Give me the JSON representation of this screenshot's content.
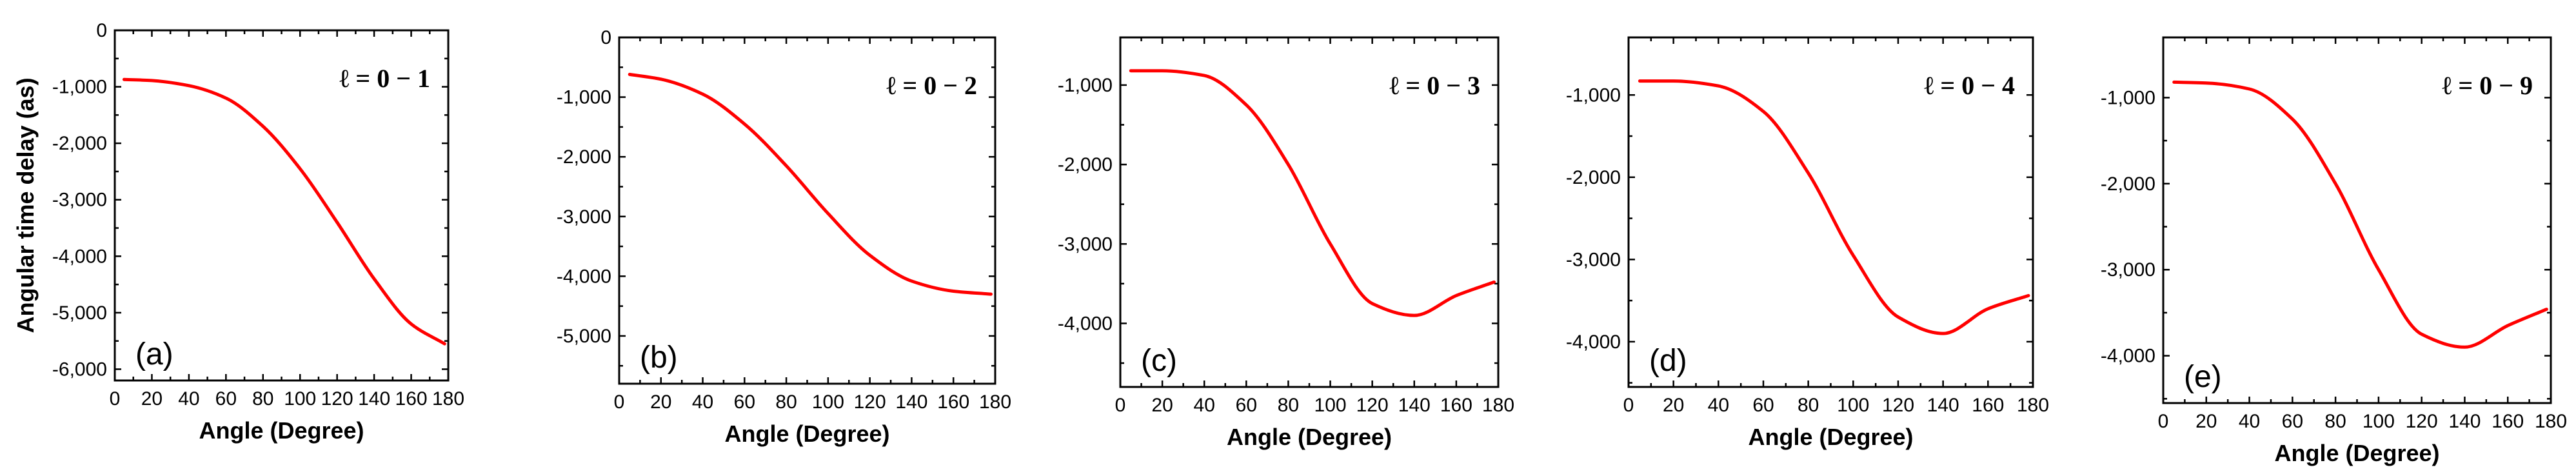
{
  "chart_data": [
    {
      "type": "line",
      "panel": "(a)",
      "label": "ℓ = 0 − 1",
      "xlabel": "Angle (Degree)",
      "ylabel": "Angular time delay (as)",
      "xlim": [
        0,
        180
      ],
      "ylim": [
        -6200,
        0
      ],
      "x_ticks": [
        0,
        20,
        40,
        60,
        80,
        100,
        120,
        140,
        160,
        180
      ],
      "y_ticks": [
        0,
        -1000,
        -2000,
        -3000,
        -4000,
        -5000,
        -6000
      ],
      "y_tick_labels": [
        "0",
        "-1,000",
        "-2,000",
        "-3,000",
        "-4,000",
        "-5,000",
        "-6,000"
      ],
      "grid": false,
      "color": "#ff0000",
      "series": [
        {
          "x": [
            5,
            20,
            40,
            60,
            80,
            100,
            120,
            140,
            160,
            178
          ],
          "y": [
            -870,
            -890,
            -980,
            -1200,
            -1700,
            -2450,
            -3400,
            -4400,
            -5200,
            -5550
          ]
        }
      ]
    },
    {
      "type": "line",
      "panel": "(b)",
      "label": "ℓ = 0 − 2",
      "xlabel": "Angle (Degree)",
      "ylabel": "",
      "xlim": [
        0,
        180
      ],
      "ylim": [
        -5800,
        0
      ],
      "x_ticks": [
        0,
        20,
        40,
        60,
        80,
        100,
        120,
        140,
        160,
        180
      ],
      "y_ticks": [
        0,
        -1000,
        -2000,
        -3000,
        -4000,
        -5000
      ],
      "y_tick_labels": [
        "0",
        "-1,000",
        "-2,000",
        "-3,000",
        "-4,000",
        "-5,000"
      ],
      "grid": false,
      "color": "#ff0000",
      "series": [
        {
          "x": [
            5,
            20,
            40,
            60,
            80,
            100,
            120,
            140,
            160,
            178
          ],
          "y": [
            -620,
            -700,
            -950,
            -1450,
            -2150,
            -2950,
            -3650,
            -4080,
            -4250,
            -4300
          ]
        }
      ]
    },
    {
      "type": "line",
      "panel": "(c)",
      "label": "ℓ = 0 − 3",
      "xlabel": "Angle (Degree)",
      "ylabel": "",
      "xlim": [
        0,
        180
      ],
      "ylim": [
        -4800,
        -400
      ],
      "x_ticks": [
        0,
        20,
        40,
        60,
        80,
        100,
        120,
        140,
        160,
        180
      ],
      "y_ticks": [
        -1000,
        -2000,
        -3000,
        -4000
      ],
      "y_tick_labels": [
        "-1,000",
        "-2,000",
        "-3,000",
        "-4,000"
      ],
      "grid": false,
      "color": "#ff0000",
      "series": [
        {
          "x": [
            5,
            20,
            40,
            60,
            80,
            100,
            120,
            140,
            160,
            178
          ],
          "y": [
            -820,
            -820,
            -880,
            -1250,
            -2000,
            -3000,
            -3750,
            -3900,
            -3650,
            -3480
          ]
        }
      ]
    },
    {
      "type": "line",
      "panel": "(d)",
      "label": "ℓ = 0 − 4",
      "xlabel": "Angle (Degree)",
      "ylabel": "",
      "xlim": [
        0,
        180
      ],
      "ylim": [
        -4550,
        -300
      ],
      "x_ticks": [
        0,
        20,
        40,
        60,
        80,
        100,
        120,
        140,
        160,
        180
      ],
      "y_ticks": [
        -1000,
        -2000,
        -3000,
        -4000
      ],
      "y_tick_labels": [
        "-1,000",
        "-2,000",
        "-3,000",
        "-4,000"
      ],
      "grid": false,
      "color": "#ff0000",
      "series": [
        {
          "x": [
            5,
            20,
            40,
            60,
            80,
            100,
            120,
            140,
            160,
            178
          ],
          "y": [
            -830,
            -830,
            -890,
            -1200,
            -1950,
            -2950,
            -3700,
            -3900,
            -3600,
            -3440
          ]
        }
      ]
    },
    {
      "type": "line",
      "panel": "(e)",
      "label": "ℓ = 0 − 9",
      "xlabel": "Angle (Degree)",
      "ylabel": "",
      "xlim": [
        0,
        180
      ],
      "ylim": [
        -4550,
        -300
      ],
      "x_ticks": [
        0,
        20,
        40,
        60,
        80,
        100,
        120,
        140,
        160,
        180
      ],
      "y_ticks": [
        -1000,
        -2000,
        -3000,
        -4000
      ],
      "y_tick_labels": [
        "-1,000",
        "-2,000",
        "-3,000",
        "-4,000"
      ],
      "grid": false,
      "color": "#ff0000",
      "series": [
        {
          "x": [
            5,
            20,
            40,
            60,
            80,
            100,
            120,
            140,
            160,
            178
          ],
          "y": [
            -820,
            -830,
            -900,
            -1250,
            -2000,
            -3000,
            -3750,
            -3900,
            -3650,
            -3460
          ]
        }
      ]
    }
  ]
}
